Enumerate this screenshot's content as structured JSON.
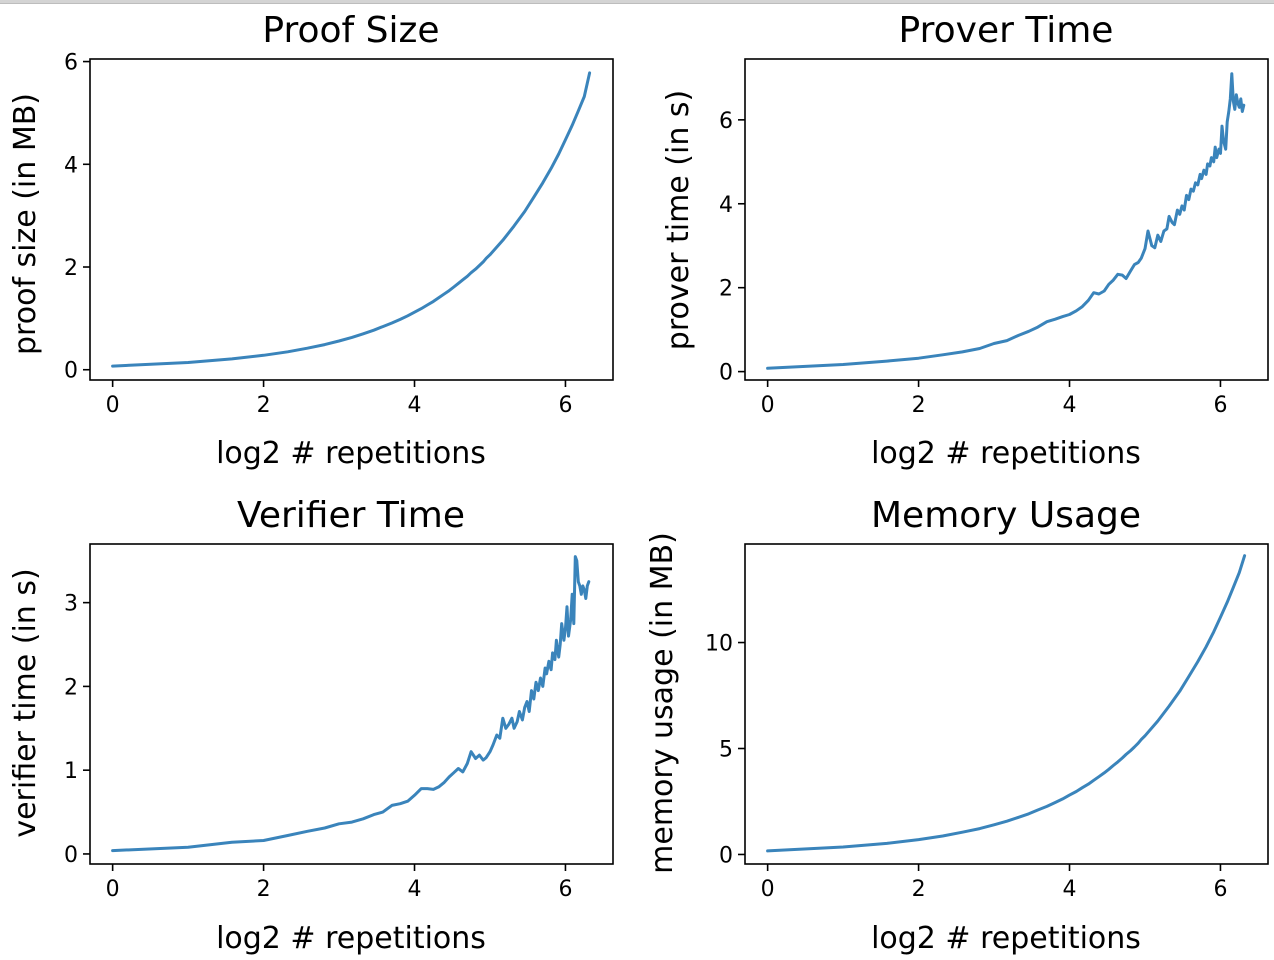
{
  "chart_data": [
    {
      "type": "line",
      "title": "Proof Size",
      "xlabel": "log2 # repetitions",
      "ylabel": "proof size (in MB)",
      "xlim": [
        -0.3,
        6.63
      ],
      "ylim": [
        -0.2,
        6.05
      ],
      "xticks": [
        0,
        2,
        4,
        6
      ],
      "yticks": [
        0,
        2,
        4,
        6
      ],
      "color": "#3a84bb",
      "series": [
        {
          "x": [
            0.0,
            1.0,
            1.58,
            2.0,
            2.32,
            2.58,
            2.81,
            3.0,
            3.17,
            3.32,
            3.46,
            3.58,
            3.7,
            3.81,
            3.91,
            4.0,
            4.09,
            4.17,
            4.25,
            4.32,
            4.39,
            4.46,
            4.52,
            4.58,
            4.64,
            4.7,
            4.75,
            4.81,
            4.86,
            4.91,
            4.95,
            5.0,
            5.17,
            5.32,
            5.46,
            5.58,
            5.7,
            5.81,
            5.91,
            6.0,
            6.09,
            6.17,
            6.25,
            6.32
          ],
          "y": [
            0.07,
            0.14,
            0.21,
            0.28,
            0.35,
            0.42,
            0.49,
            0.56,
            0.63,
            0.7,
            0.77,
            0.84,
            0.91,
            0.98,
            1.05,
            1.12,
            1.19,
            1.26,
            1.33,
            1.4,
            1.47,
            1.54,
            1.61,
            1.68,
            1.75,
            1.82,
            1.89,
            1.96,
            2.03,
            2.1,
            2.17,
            2.24,
            2.52,
            2.8,
            3.08,
            3.36,
            3.64,
            3.92,
            4.2,
            4.48,
            4.76,
            5.04,
            5.32,
            5.78
          ]
        }
      ]
    },
    {
      "type": "line",
      "title": "Prover Time",
      "xlabel": "log2 # repetitions",
      "ylabel": "prover time (in s)",
      "xlim": [
        -0.3,
        6.63
      ],
      "ylim": [
        -0.2,
        7.45
      ],
      "xticks": [
        0,
        2,
        4,
        6
      ],
      "yticks": [
        0,
        2,
        4,
        6
      ],
      "color": "#3a84bb",
      "series": [
        {
          "x": [
            0.0,
            1.0,
            1.58,
            2.0,
            2.32,
            2.58,
            2.81,
            3.0,
            3.17,
            3.32,
            3.46,
            3.58,
            3.7,
            3.81,
            3.91,
            4.0,
            4.09,
            4.17,
            4.25,
            4.32,
            4.39,
            4.46,
            4.52,
            4.58,
            4.64,
            4.7,
            4.75,
            4.81,
            4.86,
            4.91,
            4.95,
            5.0,
            5.04,
            5.09,
            5.13,
            5.17,
            5.21,
            5.25,
            5.29,
            5.32,
            5.36,
            5.39,
            5.43,
            5.46,
            5.49,
            5.52,
            5.55,
            5.58,
            5.61,
            5.64,
            5.67,
            5.7,
            5.73,
            5.75,
            5.78,
            5.81,
            5.83,
            5.86,
            5.88,
            5.91,
            5.93,
            5.95,
            5.98,
            6.0,
            6.02,
            6.04,
            6.07,
            6.09,
            6.11,
            6.13,
            6.15,
            6.17,
            6.19,
            6.21,
            6.23,
            6.25,
            6.27,
            6.29,
            6.31
          ],
          "y": [
            0.08,
            0.17,
            0.25,
            0.32,
            0.4,
            0.47,
            0.55,
            0.67,
            0.74,
            0.86,
            0.96,
            1.06,
            1.19,
            1.25,
            1.31,
            1.36,
            1.45,
            1.55,
            1.7,
            1.88,
            1.85,
            1.92,
            2.08,
            2.18,
            2.32,
            2.3,
            2.22,
            2.4,
            2.55,
            2.6,
            2.7,
            2.93,
            3.35,
            3.0,
            2.95,
            3.25,
            3.1,
            3.35,
            3.4,
            3.7,
            3.55,
            3.5,
            3.85,
            3.75,
            3.95,
            3.85,
            4.2,
            4.1,
            4.35,
            4.3,
            4.5,
            4.45,
            4.7,
            4.6,
            4.8,
            4.7,
            4.95,
            4.9,
            5.1,
            5.0,
            5.35,
            5.1,
            5.3,
            5.2,
            5.85,
            5.5,
            5.3,
            5.95,
            6.2,
            6.5,
            7.1,
            6.45,
            6.25,
            6.6,
            6.4,
            6.3,
            6.5,
            6.2,
            6.35
          ]
        }
      ]
    },
    {
      "type": "line",
      "title": "Verifier Time",
      "xlabel": "log2 # repetitions",
      "ylabel": "verifier time (in s)",
      "xlim": [
        -0.3,
        6.63
      ],
      "ylim": [
        -0.12,
        3.7
      ],
      "xticks": [
        0,
        2,
        4,
        6
      ],
      "yticks": [
        0,
        1,
        2,
        3
      ],
      "color": "#3a84bb",
      "series": [
        {
          "x": [
            0.0,
            1.0,
            1.58,
            2.0,
            2.32,
            2.58,
            2.81,
            3.0,
            3.17,
            3.32,
            3.46,
            3.58,
            3.7,
            3.81,
            3.91,
            4.0,
            4.09,
            4.17,
            4.25,
            4.32,
            4.39,
            4.46,
            4.52,
            4.58,
            4.64,
            4.7,
            4.75,
            4.81,
            4.86,
            4.91,
            4.95,
            5.0,
            5.04,
            5.09,
            5.13,
            5.17,
            5.21,
            5.25,
            5.29,
            5.32,
            5.36,
            5.39,
            5.43,
            5.46,
            5.49,
            5.52,
            5.55,
            5.58,
            5.61,
            5.64,
            5.67,
            5.7,
            5.73,
            5.75,
            5.78,
            5.81,
            5.83,
            5.86,
            5.88,
            5.91,
            5.93,
            5.95,
            5.98,
            6.0,
            6.02,
            6.04,
            6.07,
            6.09,
            6.11,
            6.13,
            6.15,
            6.17,
            6.19,
            6.21,
            6.23,
            6.25,
            6.27,
            6.29,
            6.31
          ],
          "y": [
            0.04,
            0.08,
            0.14,
            0.16,
            0.22,
            0.27,
            0.31,
            0.36,
            0.38,
            0.42,
            0.47,
            0.5,
            0.58,
            0.6,
            0.63,
            0.7,
            0.78,
            0.78,
            0.77,
            0.8,
            0.85,
            0.92,
            0.97,
            1.02,
            0.98,
            1.08,
            1.22,
            1.14,
            1.18,
            1.12,
            1.15,
            1.22,
            1.3,
            1.42,
            1.38,
            1.62,
            1.5,
            1.55,
            1.62,
            1.5,
            1.58,
            1.7,
            1.6,
            1.75,
            1.82,
            1.7,
            1.95,
            1.85,
            2.05,
            1.95,
            2.1,
            2.0,
            2.22,
            2.15,
            2.3,
            2.2,
            2.4,
            2.32,
            2.55,
            2.35,
            2.5,
            2.75,
            2.55,
            2.7,
            2.95,
            2.6,
            2.8,
            3.1,
            2.75,
            3.55,
            3.5,
            3.25,
            3.2,
            3.1,
            3.2,
            3.15,
            3.05,
            3.2,
            3.25
          ]
        }
      ]
    },
    {
      "type": "line",
      "title": "Memory Usage",
      "xlabel": "log2 # repetitions",
      "ylabel": "memory usage (in MB)",
      "xlim": [
        -0.3,
        6.63
      ],
      "ylim": [
        -0.45,
        14.65
      ],
      "xticks": [
        0,
        2,
        4,
        6
      ],
      "yticks": [
        0,
        5,
        10
      ],
      "color": "#3a84bb",
      "series": [
        {
          "x": [
            0.0,
            1.0,
            1.58,
            2.0,
            2.32,
            2.58,
            2.81,
            3.0,
            3.17,
            3.32,
            3.46,
            3.58,
            3.7,
            3.81,
            3.91,
            4.0,
            4.09,
            4.17,
            4.25,
            4.32,
            4.39,
            4.46,
            4.52,
            4.58,
            4.64,
            4.7,
            4.75,
            4.81,
            4.86,
            4.91,
            4.95,
            5.0,
            5.17,
            5.32,
            5.46,
            5.58,
            5.7,
            5.81,
            5.91,
            6.0,
            6.09,
            6.17,
            6.25,
            6.32
          ],
          "y": [
            0.17,
            0.35,
            0.52,
            0.7,
            0.87,
            1.05,
            1.22,
            1.4,
            1.57,
            1.75,
            1.92,
            2.1,
            2.27,
            2.45,
            2.62,
            2.8,
            2.97,
            3.15,
            3.32,
            3.5,
            3.67,
            3.85,
            4.02,
            4.2,
            4.37,
            4.55,
            4.72,
            4.9,
            5.07,
            5.25,
            5.42,
            5.6,
            6.3,
            7.0,
            7.7,
            8.4,
            9.1,
            9.8,
            10.5,
            11.2,
            11.9,
            12.6,
            13.3,
            14.1
          ]
        }
      ]
    }
  ]
}
